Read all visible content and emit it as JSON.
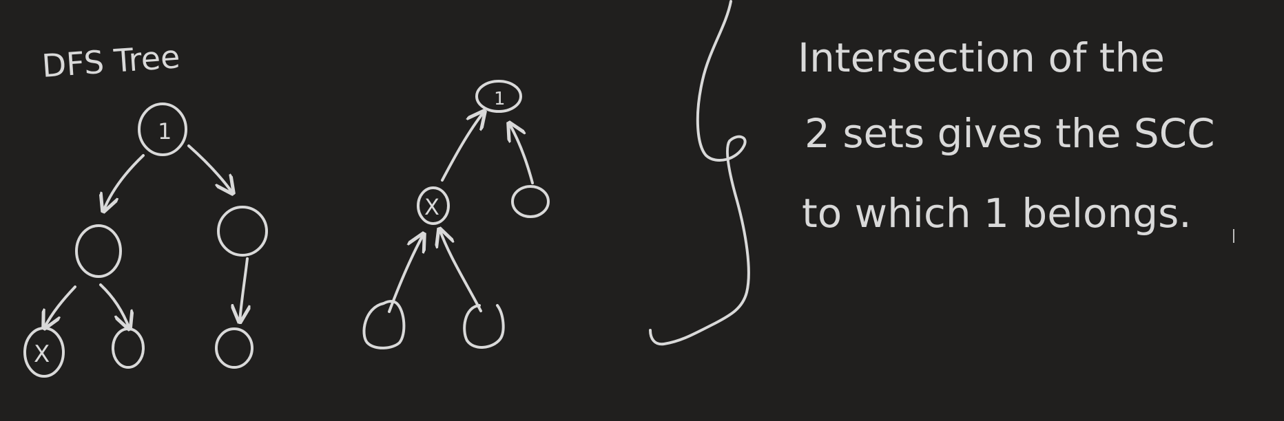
{
  "colors": {
    "background": "#201f1e",
    "ink": "#d9d9d9"
  },
  "left_diagram": {
    "title": "DFS Tree",
    "root_label": "1",
    "leaf_mark": "X"
  },
  "middle_diagram": {
    "root_label": "1",
    "mid_mark": "X"
  },
  "note": {
    "line1": "Intersection of the",
    "line2": "2 sets gives the SCC",
    "line3": "to which 1 belongs."
  }
}
